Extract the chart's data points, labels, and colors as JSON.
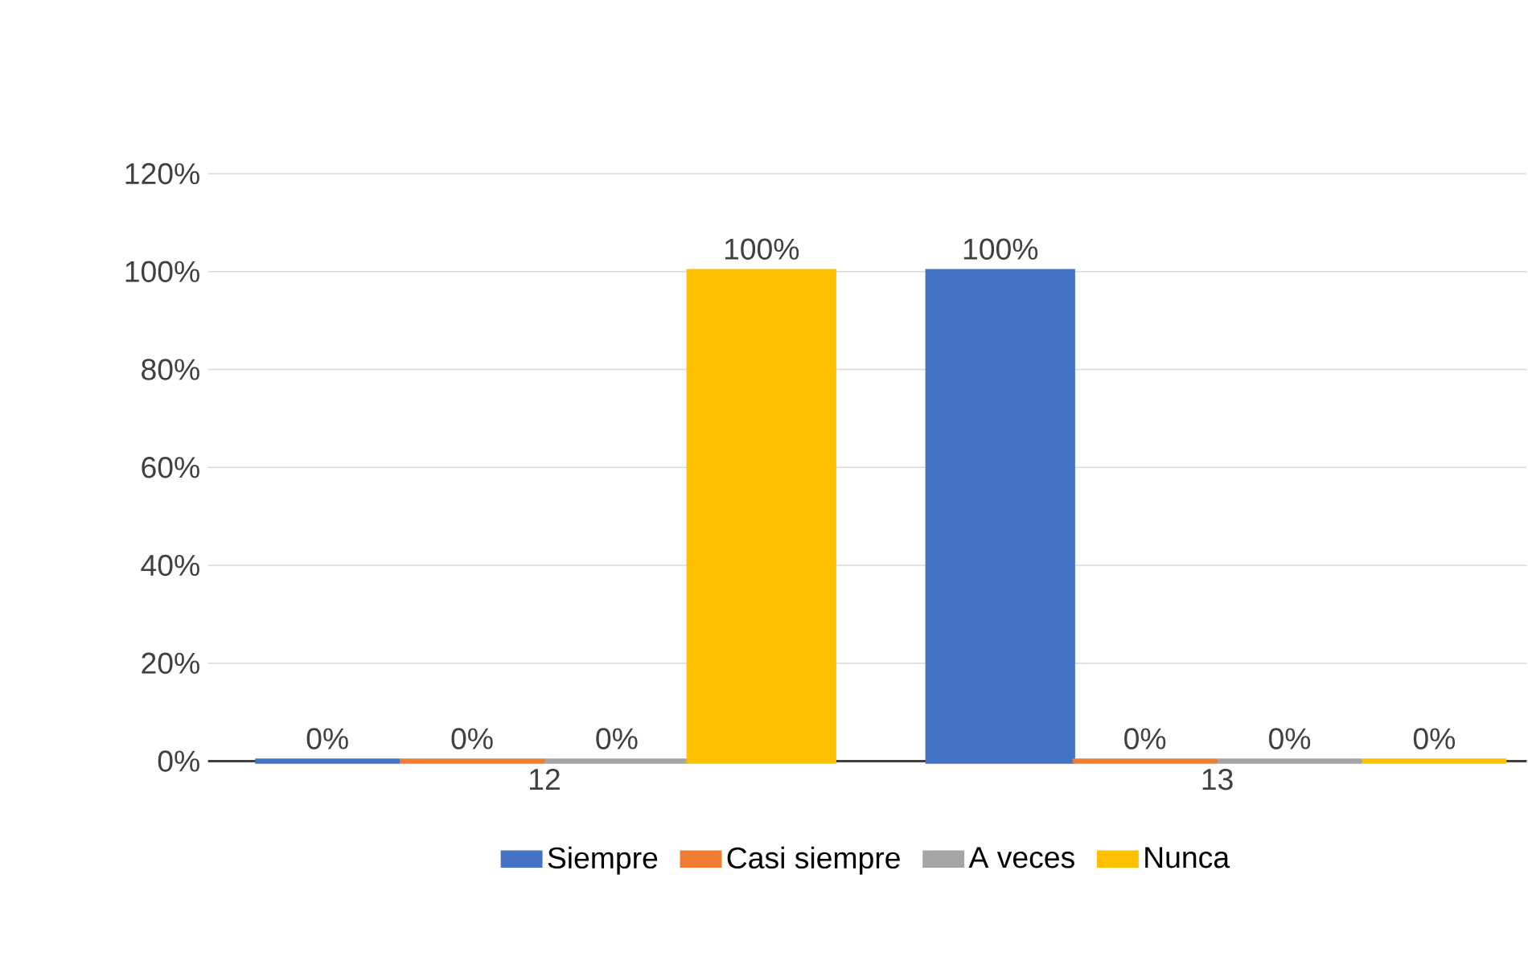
{
  "chart_data": {
    "type": "bar",
    "categories": [
      "12",
      "13"
    ],
    "series": [
      {
        "name": "Siempre",
        "color": "#4472c4",
        "values": [
          0,
          100
        ],
        "value_labels": [
          "0%",
          "100%"
        ]
      },
      {
        "name": "Casi siempre",
        "color": "#ed7d31",
        "values": [
          0,
          0
        ],
        "value_labels": [
          "0%",
          "0%"
        ]
      },
      {
        "name": "A veces",
        "color": "#a5a5a5",
        "values": [
          0,
          0
        ],
        "value_labels": [
          "0%",
          "0%"
        ]
      },
      {
        "name": "Nunca",
        "color": "#ffc000",
        "values": [
          100,
          0
        ],
        "value_labels": [
          "100%",
          "0%"
        ]
      }
    ],
    "ylim": [
      0,
      120
    ],
    "yticks": [
      {
        "value": 0,
        "label": "0%"
      },
      {
        "value": 20,
        "label": "20%"
      },
      {
        "value": 40,
        "label": "40%"
      },
      {
        "value": 60,
        "label": "60%"
      },
      {
        "value": 80,
        "label": "80%"
      },
      {
        "value": 100,
        "label": "100%"
      },
      {
        "value": 120,
        "label": "120%"
      }
    ],
    "grid": "y",
    "legend": "bottom"
  }
}
